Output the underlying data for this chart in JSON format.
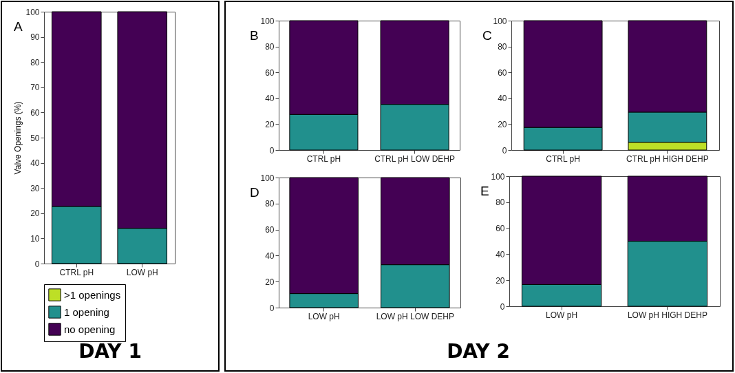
{
  "chart_data": [
    {
      "type": "bar",
      "title": "A",
      "stacked": true,
      "ylabel": "Valve Openings (%)",
      "categories": [
        "CTRL pH",
        "LOW pH"
      ],
      "ylim": [
        0,
        100
      ],
      "yticks": [
        0,
        10,
        20,
        30,
        40,
        50,
        60,
        70,
        80,
        90,
        100
      ],
      "legend": "bottom",
      "annotations": [
        "DAY 1"
      ],
      "series": [
        {
          "name": ">1 openings",
          "color": "#bddf26",
          "values": [
            0,
            0
          ]
        },
        {
          "name": "1 opening",
          "color": "#21908d",
          "values": [
            22.7,
            14
          ]
        },
        {
          "name": "no opening",
          "color": "#440154",
          "values": [
            77.3,
            86
          ]
        }
      ]
    },
    {
      "type": "bar",
      "title": "B",
      "stacked": true,
      "categories": [
        "CTRL pH",
        "CTRL pH LOW DEHP"
      ],
      "ylim": [
        0,
        100
      ],
      "yticks": [
        0,
        20,
        40,
        60,
        80,
        100
      ],
      "annotations": [
        "DAY 2"
      ],
      "series": [
        {
          "color": "#21908d",
          "values": [
            27.5,
            35.3
          ]
        },
        {
          "color": "#440154",
          "values": [
            72.5,
            64.7
          ]
        }
      ]
    },
    {
      "type": "bar",
      "title": "C",
      "stacked": true,
      "categories": [
        "CTRL pH",
        "CTRL pH  HIGH DEHP"
      ],
      "ylim": [
        0,
        100
      ],
      "yticks": [
        0,
        20,
        40,
        60,
        80,
        100
      ],
      "series": [
        {
          "color": "#bddf26",
          "values": [
            0,
            6
          ]
        },
        {
          "color": "#21908d",
          "values": [
            17.5,
            23.3
          ]
        },
        {
          "color": "#440154",
          "values": [
            82.5,
            70.7
          ]
        }
      ]
    },
    {
      "type": "bar",
      "title": "D",
      "stacked": true,
      "categories": [
        "LOW pH",
        "LOW pH LOW DEHP"
      ],
      "ylim": [
        0,
        100
      ],
      "yticks": [
        0,
        20,
        40,
        60,
        80,
        100
      ],
      "series": [
        {
          "color": "#21908d",
          "values": [
            10.8,
            33
          ]
        },
        {
          "color": "#440154",
          "values": [
            89.2,
            67
          ]
        }
      ]
    },
    {
      "type": "bar",
      "title": "E",
      "stacked": true,
      "categories": [
        "LOW pH",
        "LOW pH HIGH DEHP"
      ],
      "ylim": [
        0,
        100
      ],
      "yticks": [
        0,
        20,
        40,
        60,
        80,
        100
      ],
      "series": [
        {
          "color": "#21908d",
          "values": [
            16.7,
            50
          ]
        },
        {
          "color": "#440154",
          "values": [
            83.3,
            50
          ]
        }
      ]
    }
  ]
}
